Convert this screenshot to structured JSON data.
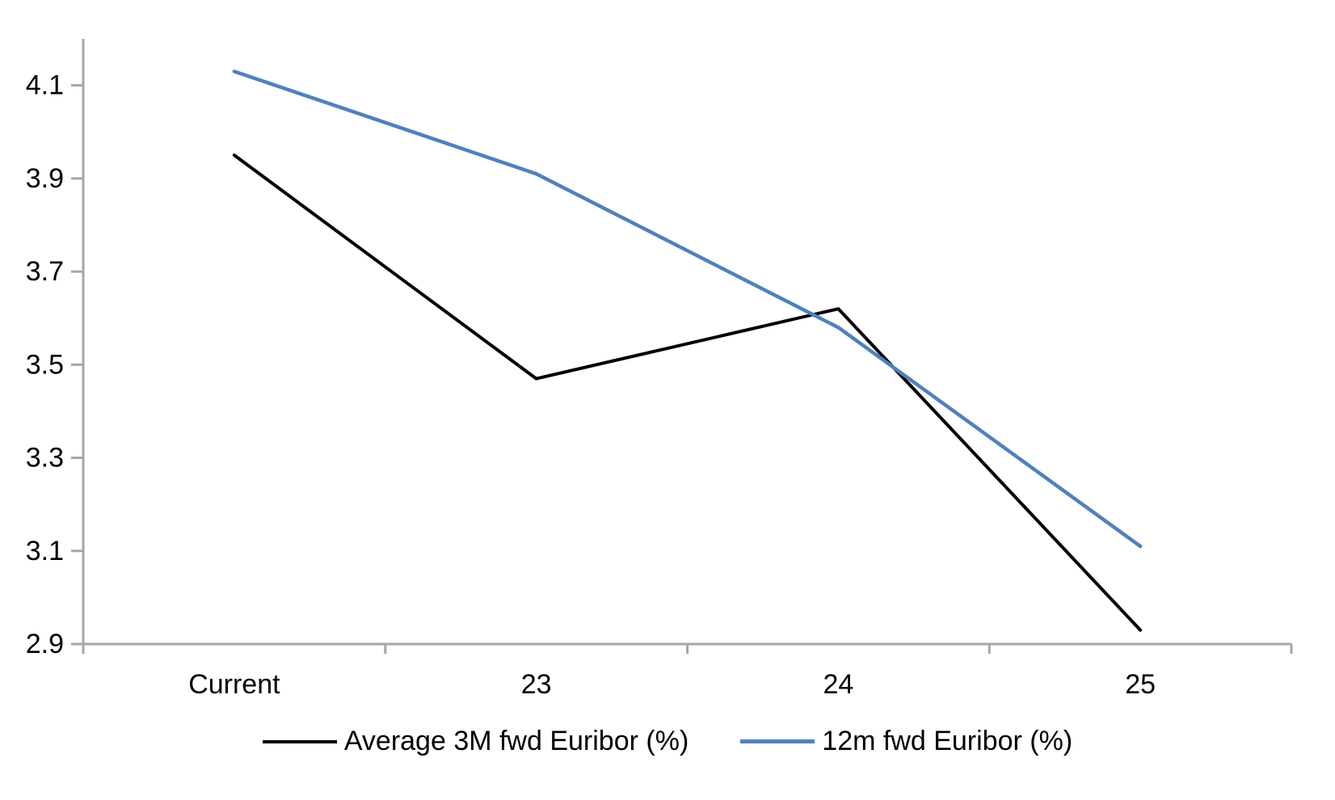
{
  "chart_data": {
    "type": "line",
    "title": "",
    "xlabel": "",
    "ylabel": "",
    "categories": [
      "Current",
      "23",
      "24",
      "25"
    ],
    "series": [
      {
        "name": "Average 3M fwd Euribor (%)",
        "color": "#000000",
        "values": [
          3.95,
          3.47,
          3.62,
          2.93
        ]
      },
      {
        "name": "12m fwd Euribor (%)",
        "color": "#4F81BD",
        "values": [
          4.13,
          3.91,
          3.58,
          3.11
        ]
      }
    ],
    "ylim": [
      2.9,
      4.2
    ],
    "yticks": [
      2.9,
      3.1,
      3.3,
      3.5,
      3.7,
      3.9,
      4.1
    ],
    "ytick_format_decimals": 1,
    "grid": false,
    "legend_position": "bottom",
    "axis_color": "#A6A6A6",
    "text_color": "#000000"
  }
}
